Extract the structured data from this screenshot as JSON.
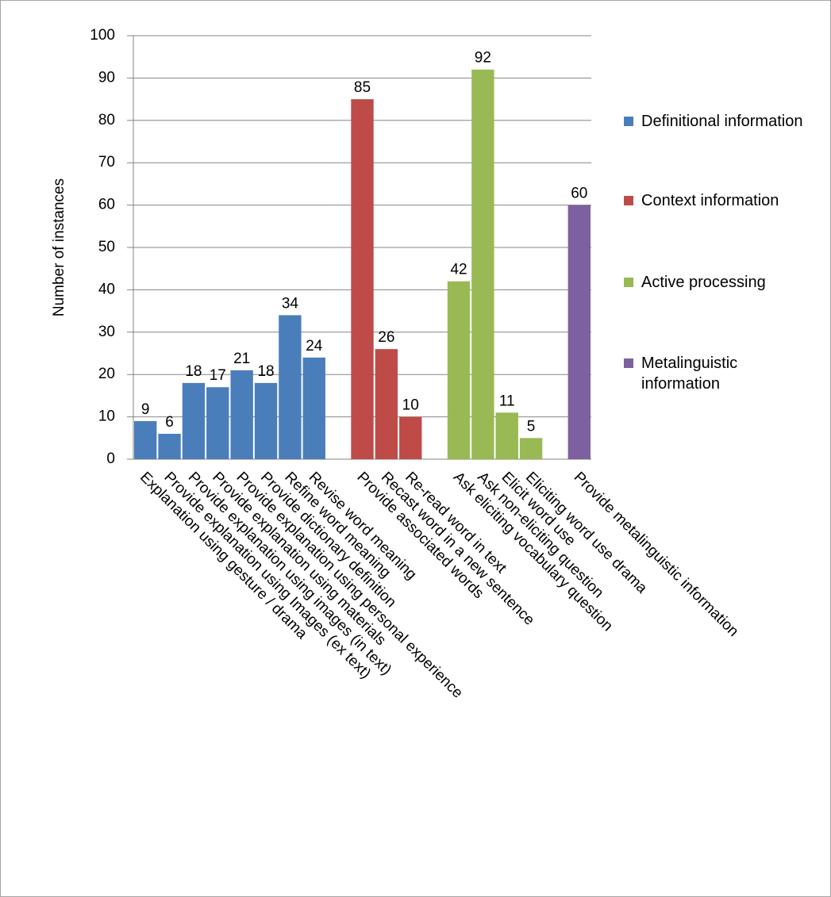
{
  "chart_data": {
    "type": "bar",
    "y_label": "Number of instances",
    "categories": [
      "Explanation using gesture / drama",
      "Provide explanation using Images (ex text)",
      "Provide explanation using images (in text)",
      "Provide explanation using materials",
      "Provide explanation using personal  experience",
      "Provide dictionary definition",
      "Refine word meaning",
      "Revise word meaning",
      null,
      "Provide associated words",
      "Recast word in a new sentence",
      "Re-read word in text",
      null,
      "Ask eliciting vocabulary question",
      "Ask non-eliciting question",
      "Elicit word use",
      "Eliciting word use drama",
      null,
      "Provide metalinguistic information"
    ],
    "series": [
      {
        "name": "Definitional information",
        "color": "#4a7ebb",
        "values": [
          9,
          6,
          18,
          17,
          21,
          18,
          34,
          24,
          null,
          null,
          null,
          null,
          null,
          null,
          null,
          null,
          null,
          null,
          null
        ]
      },
      {
        "name": "Context information",
        "color": "#be4b48",
        "values": [
          null,
          null,
          null,
          null,
          null,
          null,
          null,
          null,
          null,
          85,
          26,
          10,
          null,
          null,
          null,
          null,
          null,
          null,
          null
        ]
      },
      {
        "name": "Active processing",
        "color": "#98b954",
        "values": [
          null,
          null,
          null,
          null,
          null,
          null,
          null,
          null,
          null,
          null,
          null,
          null,
          null,
          42,
          92,
          11,
          5,
          null,
          null
        ]
      },
      {
        "name": "Metalinguistic information",
        "color": "#7d60a0",
        "values": [
          null,
          null,
          null,
          null,
          null,
          null,
          null,
          null,
          null,
          null,
          null,
          null,
          null,
          null,
          null,
          null,
          null,
          null,
          60
        ]
      }
    ],
    "ylim": [
      0,
      100
    ],
    "yticks": [
      0,
      10,
      20,
      30,
      40,
      50,
      60,
      70,
      80,
      90,
      100
    ],
    "grid": true,
    "legend": "right"
  }
}
